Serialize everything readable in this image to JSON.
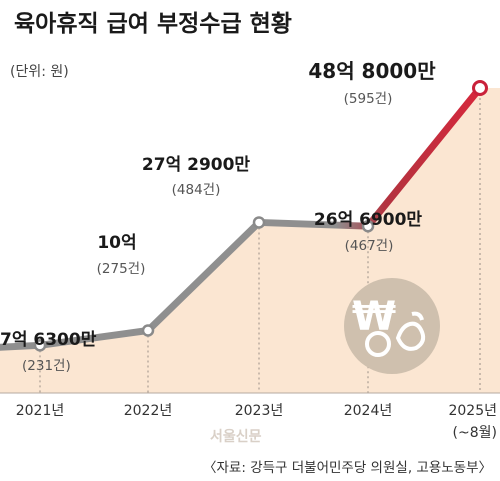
{
  "chart_data": {
    "type": "line",
    "title": "육아휴직 급여 부정수급 현황",
    "unit": "(단위: 원)",
    "categories": [
      "2021년",
      "2022년",
      "2023년",
      "2024년",
      "2025년"
    ],
    "category_note": "(~8월)",
    "values": [
      763000000,
      1000000000,
      2729000000,
      2669000000,
      4880000000
    ],
    "value_labels": [
      "7억 6300만",
      "10억",
      "27억 2900만",
      "26억 6900만",
      "48억 8000만"
    ],
    "counts": [
      "(231건)",
      "(275건)",
      "(484건)",
      "(467건)",
      "(595건)"
    ],
    "ylim": [
      0,
      5200000000
    ],
    "line_colors": [
      "#8a8a8a",
      "#c9213a"
    ],
    "fill_color": "#fbe6d2"
  },
  "source": "〈자료: 강득구 더불어민주당 의원실, 고용노동부〉",
  "logo_text": "서울신문"
}
